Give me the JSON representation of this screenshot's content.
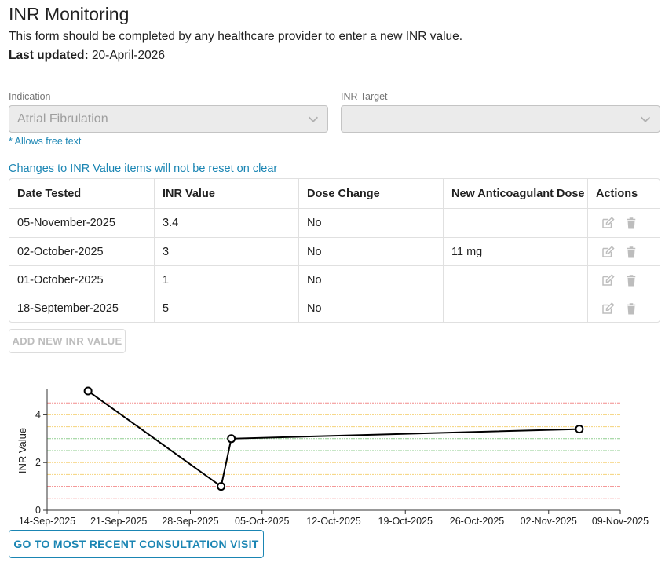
{
  "header": {
    "title": "INR Monitoring",
    "subtitle": "This form should be completed by any healthcare provider to enter a new INR value.",
    "updated_label": "Last updated:",
    "updated_value": "20-April-2026"
  },
  "form": {
    "indication": {
      "label": "Indication",
      "value": "Atrial Fibrulation"
    },
    "inr_target": {
      "label": "INR Target",
      "value": ""
    },
    "free_text_hint": "* Allows free text",
    "reset_note": "Changes to INR Value items will not be reset on clear"
  },
  "table": {
    "headers": [
      "Date Tested",
      "INR Value",
      "Dose Change",
      "New Anticoagulant Dose",
      "Actions"
    ],
    "rows": [
      [
        "05-November-2025",
        "3.4",
        "No",
        ""
      ],
      [
        "02-October-2025",
        "3",
        "No",
        "11 mg"
      ],
      [
        "01-October-2025",
        "1",
        "No",
        ""
      ],
      [
        "18-September-2025",
        "5",
        "No",
        ""
      ]
    ],
    "action_icons": [
      "edit-icon",
      "trash-icon"
    ]
  },
  "buttons": {
    "add_inr": "ADD NEW INR VALUE",
    "go_recent": "GO TO MOST RECENT CONSULTATION VISIT"
  },
  "colors": {
    "accent": "#1a85b3",
    "band_red": "#f28b8b",
    "band_yellow": "#f5d27a",
    "band_green": "#8fce8f"
  },
  "chart_data": {
    "type": "line",
    "ylabel": "INR Value",
    "x": [
      "2025-09-18",
      "2025-10-01",
      "2025-10-02",
      "2025-11-05"
    ],
    "y": [
      5,
      1,
      3,
      3.4
    ],
    "xlim": [
      "2025-09-14",
      "2025-11-09"
    ],
    "ylim": [
      0,
      5
    ],
    "x_ticks": [
      "14-Sep-2025",
      "21-Sep-2025",
      "28-Sep-2025",
      "05-Oct-2025",
      "12-Oct-2025",
      "19-Oct-2025",
      "26-Oct-2025",
      "02-Nov-2025",
      "09-Nov-2025"
    ],
    "y_ticks": [
      "0",
      "2",
      "4"
    ],
    "reference_bands": [
      {
        "y": 0.5,
        "color": "red"
      },
      {
        "y": 1.0,
        "color": "red"
      },
      {
        "y": 1.5,
        "color": "yellow"
      },
      {
        "y": 2.0,
        "color": "yellow"
      },
      {
        "y": 2.5,
        "color": "green"
      },
      {
        "y": 3.0,
        "color": "green"
      },
      {
        "y": 3.5,
        "color": "yellow"
      },
      {
        "y": 4.0,
        "color": "yellow"
      },
      {
        "y": 4.5,
        "color": "red"
      }
    ]
  }
}
